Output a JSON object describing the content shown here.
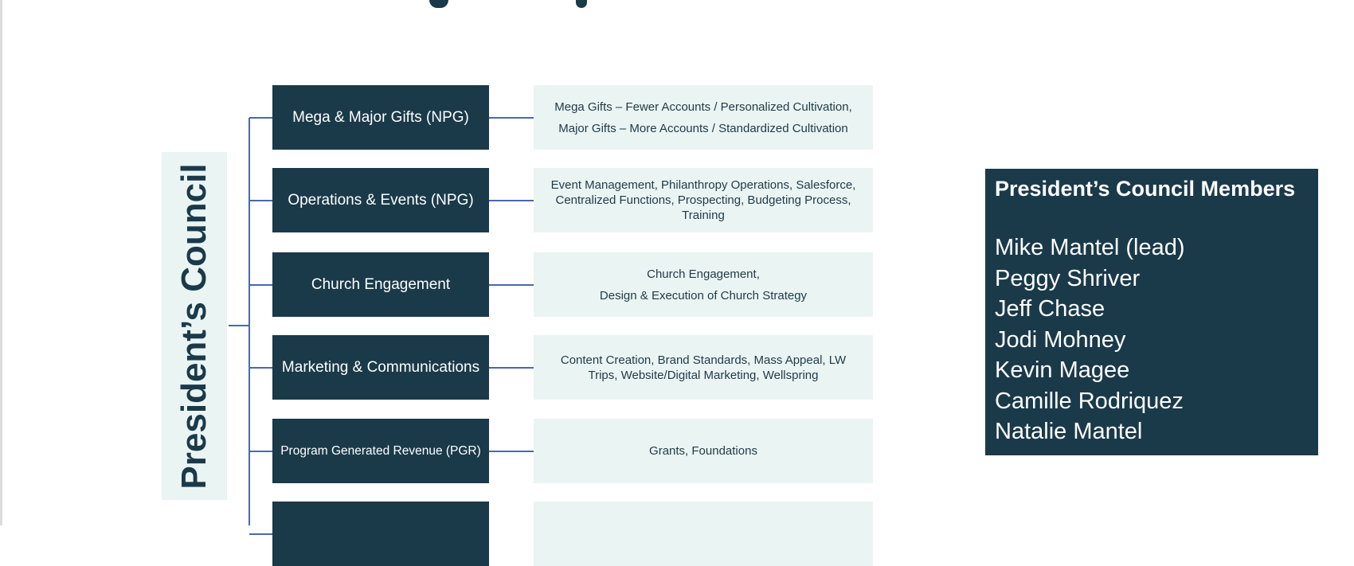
{
  "council_label": "President’s Council",
  "units": [
    {
      "name": "Mega & Major Gifts (NPG)",
      "description": [
        "Mega Gifts – Fewer Accounts / Personalized Cultivation,",
        "Major Gifts – More Accounts / Standardized Cultivation"
      ]
    },
    {
      "name": "Operations & Events (NPG)",
      "description": [
        "Event Management, Philanthropy Operations, Salesforce,",
        "Centralized Functions, Prospecting, Budgeting Process,",
        "Training"
      ]
    },
    {
      "name": "Church Engagement",
      "description": [
        "Church Engagement,",
        "Design & Execution of Church Strategy"
      ]
    },
    {
      "name": "Marketing & Communications",
      "description": [
        "Content Creation, Brand Standards, Mass Appeal, LW",
        "Trips, Website/Digital Marketing, Wellspring"
      ]
    },
    {
      "name": "Program Generated Revenue (PGR)",
      "description": [
        "Grants, Foundations"
      ]
    },
    {
      "name": "",
      "description": []
    }
  ],
  "members_panel": {
    "title": "President’s Council Members",
    "members": [
      "Mike Mantel (lead)",
      "Peggy Shriver",
      "Jeff Chase",
      "Jodi Mohney",
      "Kevin Magee",
      "Camille Rodriquez",
      "Natalie Mantel"
    ]
  },
  "colors": {
    "dark": "#1a3a4a",
    "light": "#eaf4f3",
    "connector": "#4d67ad"
  }
}
